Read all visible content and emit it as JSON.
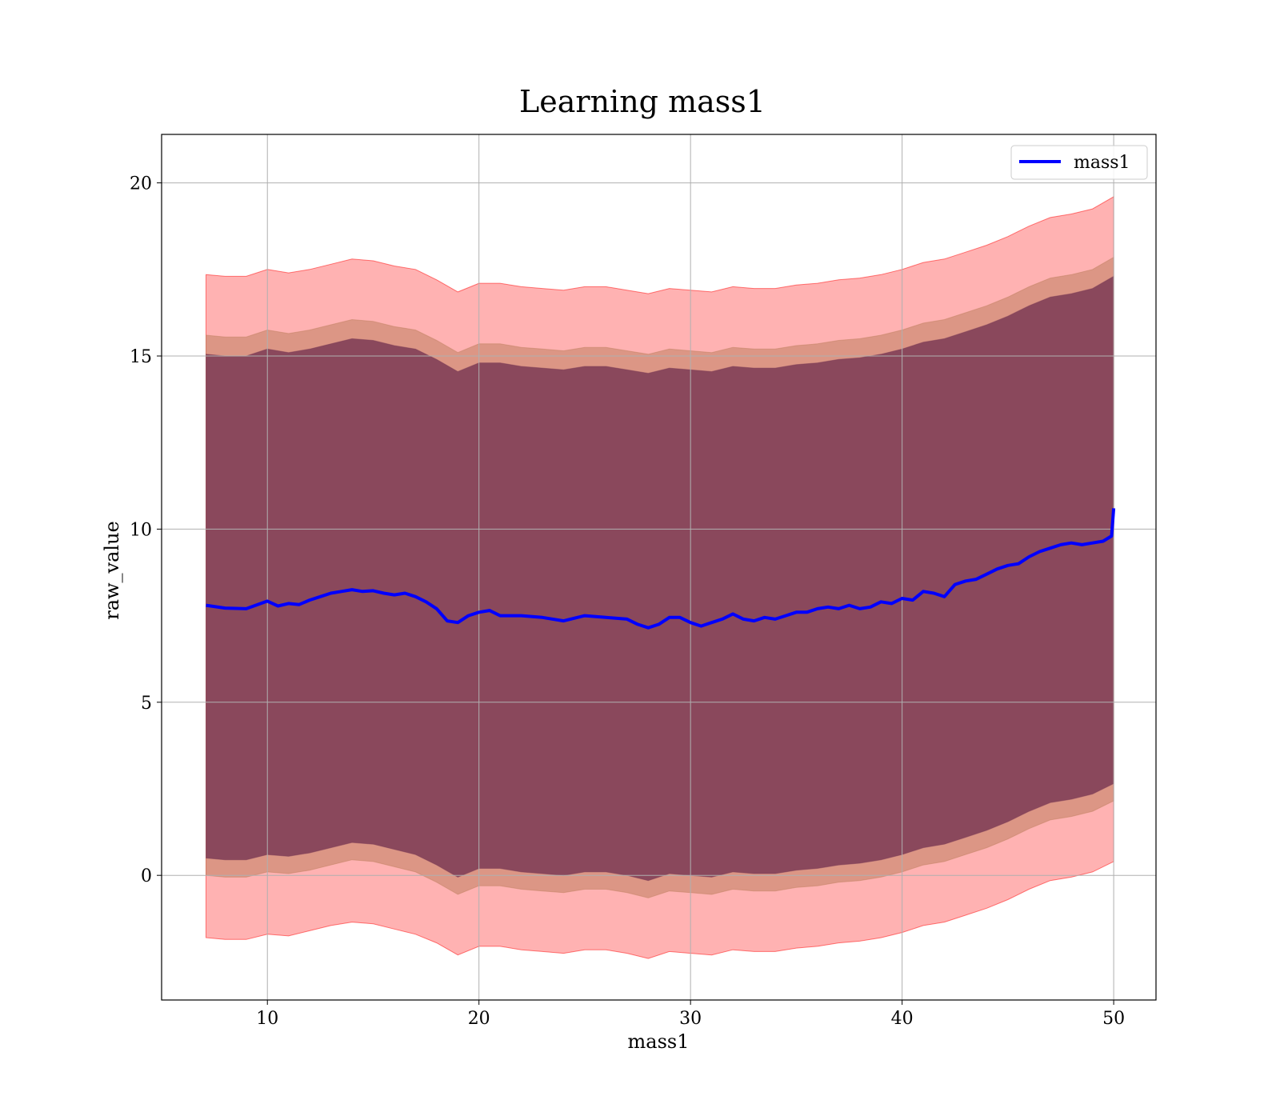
{
  "chart_data": {
    "type": "line",
    "title": "Learning mass1",
    "xlabel": "mass1",
    "ylabel": "raw_value",
    "xlim": [
      5,
      52
    ],
    "ylim": [
      -3.6,
      21.4
    ],
    "xticks": [
      10,
      20,
      30,
      40,
      50
    ],
    "yticks": [
      0,
      5,
      10,
      15,
      20
    ],
    "grid": true,
    "legend_position": "top-right",
    "series": [
      {
        "name": "mass1",
        "color": "#0000ff",
        "x": [
          7.1,
          8.0,
          9.0,
          10.0,
          10.5,
          11.0,
          11.5,
          12.0,
          12.5,
          13.0,
          13.5,
          14.0,
          14.5,
          15.0,
          15.5,
          16.0,
          16.5,
          17.0,
          17.5,
          18.0,
          18.5,
          19.0,
          19.5,
          20.0,
          20.5,
          21.0,
          22.0,
          23.0,
          24.0,
          25.0,
          26.0,
          27.0,
          27.5,
          28.0,
          28.5,
          29.0,
          29.5,
          30.0,
          30.5,
          31.0,
          31.5,
          32.0,
          32.5,
          33.0,
          33.5,
          34.0,
          34.5,
          35.0,
          35.5,
          36.0,
          36.5,
          37.0,
          37.5,
          38.0,
          38.5,
          39.0,
          39.5,
          40.0,
          40.5,
          41.0,
          41.5,
          42.0,
          42.5,
          43.0,
          43.5,
          44.0,
          44.5,
          45.0,
          45.5,
          46.0,
          46.5,
          47.0,
          47.5,
          48.0,
          48.5,
          49.0,
          49.5,
          49.9,
          50.0
        ],
        "y": [
          7.8,
          7.72,
          7.7,
          7.92,
          7.78,
          7.85,
          7.82,
          7.95,
          8.05,
          8.15,
          8.2,
          8.25,
          8.2,
          8.22,
          8.15,
          8.1,
          8.15,
          8.05,
          7.9,
          7.7,
          7.35,
          7.3,
          7.5,
          7.6,
          7.65,
          7.5,
          7.5,
          7.45,
          7.35,
          7.5,
          7.45,
          7.4,
          7.25,
          7.15,
          7.25,
          7.45,
          7.45,
          7.3,
          7.2,
          7.3,
          7.4,
          7.55,
          7.4,
          7.35,
          7.45,
          7.4,
          7.5,
          7.6,
          7.6,
          7.7,
          7.75,
          7.7,
          7.8,
          7.7,
          7.75,
          7.9,
          7.85,
          8.0,
          7.95,
          8.2,
          8.15,
          8.05,
          8.4,
          8.5,
          8.55,
          8.7,
          8.85,
          8.95,
          9.0,
          9.2,
          9.35,
          9.45,
          9.55,
          9.6,
          9.55,
          9.6,
          9.65,
          9.8,
          10.6
        ]
      }
    ],
    "bands": [
      {
        "color": "#ff0000",
        "opacity": 0.3,
        "x": [
          7.1,
          8.0,
          9.0,
          10.0,
          11.0,
          12.0,
          13.0,
          14.0,
          15.0,
          16.0,
          17.0,
          18.0,
          19.0,
          20.0,
          21.0,
          22.0,
          23.0,
          24.0,
          25.0,
          26.0,
          27.0,
          28.0,
          29.0,
          30.0,
          31.0,
          32.0,
          33.0,
          34.0,
          35.0,
          36.0,
          37.0,
          38.0,
          39.0,
          40.0,
          41.0,
          42.0,
          43.0,
          44.0,
          45.0,
          46.0,
          47.0,
          48.0,
          49.0,
          50.0
        ],
        "upper": [
          17.35,
          17.3,
          17.3,
          17.5,
          17.4,
          17.5,
          17.65,
          17.8,
          17.75,
          17.6,
          17.5,
          17.2,
          16.85,
          17.1,
          17.1,
          17.0,
          16.95,
          16.9,
          17.0,
          17.0,
          16.9,
          16.8,
          16.95,
          16.9,
          16.85,
          17.0,
          16.95,
          16.95,
          17.05,
          17.1,
          17.2,
          17.25,
          17.35,
          17.5,
          17.7,
          17.8,
          18.0,
          18.2,
          18.45,
          18.75,
          19.0,
          19.1,
          19.25,
          19.6
        ],
        "lower": [
          -1.8,
          -1.85,
          -1.85,
          -1.7,
          -1.75,
          -1.6,
          -1.45,
          -1.35,
          -1.4,
          -1.55,
          -1.7,
          -1.95,
          -2.3,
          -2.05,
          -2.05,
          -2.15,
          -2.2,
          -2.25,
          -2.15,
          -2.15,
          -2.25,
          -2.4,
          -2.2,
          -2.25,
          -2.3,
          -2.15,
          -2.2,
          -2.2,
          -2.1,
          -2.05,
          -1.95,
          -1.9,
          -1.8,
          -1.65,
          -1.45,
          -1.35,
          -1.15,
          -0.95,
          -0.7,
          -0.4,
          -0.15,
          -0.05,
          0.1,
          0.4
        ]
      },
      {
        "color": "#c08060",
        "opacity": 0.55,
        "x": [
          7.1,
          8.0,
          9.0,
          10.0,
          11.0,
          12.0,
          13.0,
          14.0,
          15.0,
          16.0,
          17.0,
          18.0,
          19.0,
          20.0,
          21.0,
          22.0,
          23.0,
          24.0,
          25.0,
          26.0,
          27.0,
          28.0,
          29.0,
          30.0,
          31.0,
          32.0,
          33.0,
          34.0,
          35.0,
          36.0,
          37.0,
          38.0,
          39.0,
          40.0,
          41.0,
          42.0,
          43.0,
          44.0,
          45.0,
          46.0,
          47.0,
          48.0,
          49.0,
          50.0
        ],
        "upper": [
          15.6,
          15.55,
          15.55,
          15.75,
          15.65,
          15.75,
          15.9,
          16.05,
          16.0,
          15.85,
          15.75,
          15.45,
          15.1,
          15.35,
          15.35,
          15.25,
          15.2,
          15.15,
          15.25,
          15.25,
          15.15,
          15.05,
          15.2,
          15.15,
          15.1,
          15.25,
          15.2,
          15.2,
          15.3,
          15.35,
          15.45,
          15.5,
          15.6,
          15.75,
          15.95,
          16.05,
          16.25,
          16.45,
          16.7,
          17.0,
          17.25,
          17.35,
          17.5,
          17.85
        ],
        "lower": [
          0.0,
          -0.05,
          -0.05,
          0.1,
          0.05,
          0.15,
          0.3,
          0.45,
          0.4,
          0.25,
          0.1,
          -0.2,
          -0.55,
          -0.3,
          -0.3,
          -0.4,
          -0.45,
          -0.5,
          -0.4,
          -0.4,
          -0.5,
          -0.65,
          -0.45,
          -0.5,
          -0.55,
          -0.4,
          -0.45,
          -0.45,
          -0.35,
          -0.3,
          -0.2,
          -0.15,
          -0.05,
          0.1,
          0.3,
          0.4,
          0.6,
          0.8,
          1.05,
          1.35,
          1.6,
          1.7,
          1.85,
          2.15
        ]
      },
      {
        "color": "#7b3b55",
        "opacity": 0.85,
        "x": [
          7.1,
          8.0,
          9.0,
          10.0,
          11.0,
          12.0,
          13.0,
          14.0,
          15.0,
          16.0,
          17.0,
          18.0,
          19.0,
          20.0,
          21.0,
          22.0,
          23.0,
          24.0,
          25.0,
          26.0,
          27.0,
          28.0,
          29.0,
          30.0,
          31.0,
          32.0,
          33.0,
          34.0,
          35.0,
          36.0,
          37.0,
          38.0,
          39.0,
          40.0,
          41.0,
          42.0,
          43.0,
          44.0,
          45.0,
          46.0,
          47.0,
          48.0,
          49.0,
          50.0
        ],
        "upper": [
          15.05,
          15.0,
          15.0,
          15.2,
          15.1,
          15.2,
          15.35,
          15.5,
          15.45,
          15.3,
          15.2,
          14.9,
          14.55,
          14.8,
          14.8,
          14.7,
          14.65,
          14.6,
          14.7,
          14.7,
          14.6,
          14.5,
          14.65,
          14.6,
          14.55,
          14.7,
          14.65,
          14.65,
          14.75,
          14.8,
          14.9,
          14.95,
          15.05,
          15.2,
          15.4,
          15.5,
          15.7,
          15.9,
          16.15,
          16.45,
          16.7,
          16.8,
          16.95,
          17.3
        ],
        "lower": [
          0.5,
          0.45,
          0.45,
          0.6,
          0.55,
          0.65,
          0.8,
          0.95,
          0.9,
          0.75,
          0.6,
          0.3,
          -0.05,
          0.2,
          0.2,
          0.1,
          0.05,
          0.0,
          0.1,
          0.1,
          0.0,
          -0.15,
          0.05,
          0.0,
          -0.05,
          0.1,
          0.05,
          0.05,
          0.15,
          0.2,
          0.3,
          0.35,
          0.45,
          0.6,
          0.8,
          0.9,
          1.1,
          1.3,
          1.55,
          1.85,
          2.1,
          2.2,
          2.35,
          2.65
        ]
      }
    ]
  }
}
